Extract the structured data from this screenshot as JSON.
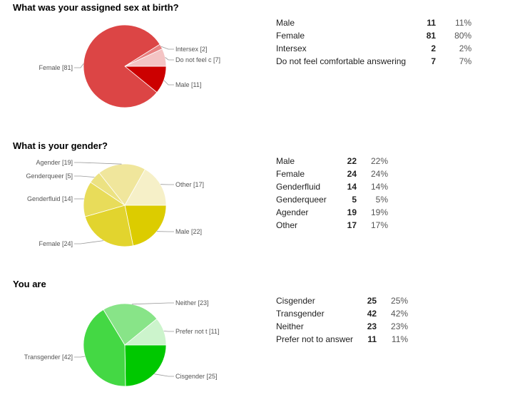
{
  "chart_data": [
    {
      "type": "pie",
      "title": "What was your assigned sex at birth?",
      "slices": [
        {
          "label": "Male",
          "value": 11,
          "percent": "11%",
          "chart_label": "Male [11]",
          "color": "#cc0000"
        },
        {
          "label": "Female",
          "value": 81,
          "percent": "80%",
          "chart_label": "Female [81]",
          "color": "#dc4545"
        },
        {
          "label": "Intersex",
          "value": 2,
          "percent": "2%",
          "chart_label": "Intersex [2]",
          "color": "#e88080"
        },
        {
          "label": "Do not feel comfortable answering",
          "value": 7,
          "percent": "7%",
          "chart_label": "Do not feel c [7]",
          "color": "#f4c4c4"
        }
      ]
    },
    {
      "type": "pie",
      "title": "What is your gender?",
      "slices": [
        {
          "label": "Male",
          "value": 22,
          "percent": "22%",
          "chart_label": "Male [22]",
          "color": "#dccc00"
        },
        {
          "label": "Female",
          "value": 24,
          "percent": "24%",
          "chart_label": "Female [24]",
          "color": "#e2d42e"
        },
        {
          "label": "Genderfluid",
          "value": 14,
          "percent": "14%",
          "chart_label": "Genderfluid [14]",
          "color": "#e8dc5a"
        },
        {
          "label": "Genderqueer",
          "value": 5,
          "percent": "5%",
          "chart_label": "Genderqueer [5]",
          "color": "#ece282"
        },
        {
          "label": "Agender",
          "value": 19,
          "percent": "19%",
          "chart_label": "Agender [19]",
          "color": "#f0e69c"
        },
        {
          "label": "Other",
          "value": 17,
          "percent": "17%",
          "chart_label": "Other [17]",
          "color": "#f6f0c8"
        }
      ]
    },
    {
      "type": "pie",
      "title": "You are",
      "slices": [
        {
          "label": "Cisgender",
          "value": 25,
          "percent": "25%",
          "chart_label": "Cisgender [25]",
          "color": "#00c800"
        },
        {
          "label": "Transgender",
          "value": 42,
          "percent": "42%",
          "chart_label": "Transgender [42]",
          "color": "#44d844"
        },
        {
          "label": "Neither",
          "value": 23,
          "percent": "23%",
          "chart_label": "Neither [23]",
          "color": "#88e488"
        },
        {
          "label": "Prefer not to answer",
          "value": 11,
          "percent": "11%",
          "chart_label": "Prefer not t [11]",
          "color": "#ccf4cc"
        }
      ]
    }
  ]
}
